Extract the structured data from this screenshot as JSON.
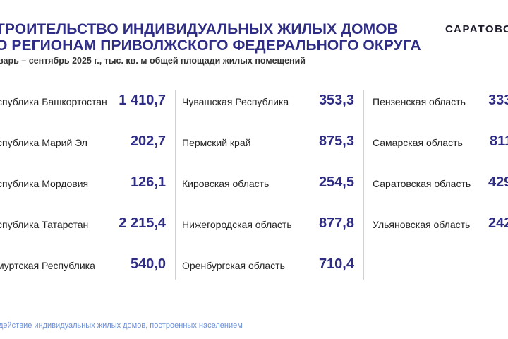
{
  "header": {
    "title_line1": "ТРОИТЕЛЬСТВО ИНДИВИДУАЛЬНЫХ ЖИЛЫХ ДОМОВ",
    "title_line2": "О РЕГИОНАМ ПРИВОЛЖСКОГО ФЕДЕРАЛЬНОГО ОКРУГА",
    "subtitle": "варь – сентябрь 2025 г., тыс. кв. м общей площади жилых помещений",
    "logo": "САРАТОВС"
  },
  "columns": [
    {
      "rows": [
        {
          "name": "спублика Башкортостан",
          "value": "1 410,7"
        },
        {
          "name": "спублика Марий Эл",
          "value": "202,7"
        },
        {
          "name": "спублика Мордовия",
          "value": "126,1"
        },
        {
          "name": "спублика Татарстан",
          "value": "2 215,4"
        },
        {
          "name": "муртская Республика",
          "value": "540,0"
        }
      ]
    },
    {
      "rows": [
        {
          "name": "Чувашская Республика",
          "value": "353,3"
        },
        {
          "name": "Пермский край",
          "value": "875,3"
        },
        {
          "name": "Кировская область",
          "value": "254,5"
        },
        {
          "name": "Нижегородская область",
          "value": "877,8"
        },
        {
          "name": "Оренбургская область",
          "value": "710,4"
        }
      ]
    },
    {
      "rows": [
        {
          "name": "Пензенская область",
          "value": "333"
        },
        {
          "name": "Самарская область",
          "value": "811"
        },
        {
          "name": "Саратовская область",
          "value": "429"
        },
        {
          "name": "Ульяновская область",
          "value": "242"
        }
      ]
    }
  ],
  "footnote": "действие индивидуальных жилых домов, построенных населением"
}
